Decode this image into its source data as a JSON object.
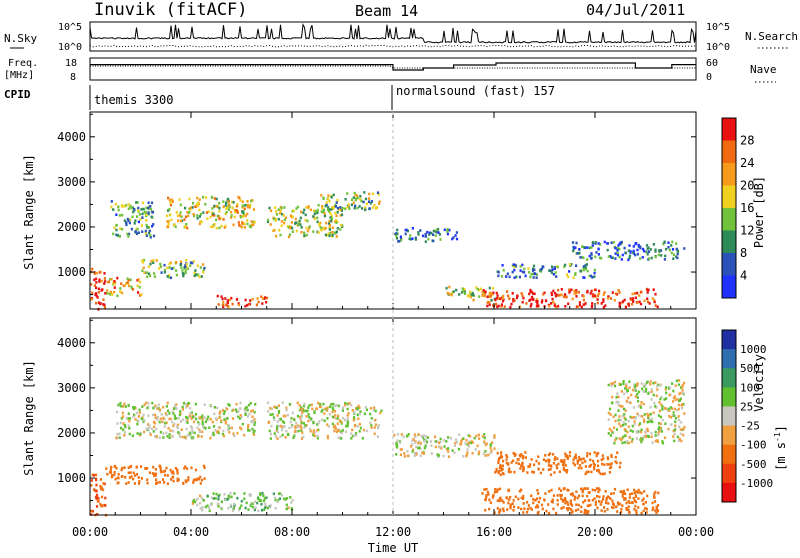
{
  "header": {
    "station": "Inuvik (fitACF)",
    "beam": "Beam 14",
    "date": "04/Jul/2011"
  },
  "top_panels": {
    "nsky_label": "N.Sky",
    "nsky_ticks": [
      "10^5",
      "10^0"
    ],
    "nsearch_label": "N.Search",
    "nsearch_ticks": [
      "10^5",
      "10^0"
    ],
    "freq_label": "Freq.",
    "freq_unit": "[MHz]",
    "freq_ticks": [
      "18",
      "8"
    ],
    "nave_label": "Nave",
    "nave_ticks": [
      "60",
      "0"
    ],
    "cpid_label": "CPID",
    "cpid_segments": [
      {
        "name": "themis 3300",
        "start_hour": 0
      },
      {
        "name": "normalsound (fast) 157",
        "start_hour": 12
      }
    ]
  },
  "x_axis": {
    "label": "Time UT",
    "ticks": [
      "00:00",
      "04:00",
      "08:00",
      "12:00",
      "16:00",
      "20:00",
      "00:00"
    ],
    "range_hours": [
      0,
      24
    ]
  },
  "y_axis": {
    "label": "Slant Range [km]",
    "ticks": [
      "1000",
      "2000",
      "3000",
      "4000"
    ],
    "range_km": [
      180,
      4550
    ]
  },
  "power_scale": {
    "label": "Power [dB]",
    "ticks": [
      "4",
      "8",
      "12",
      "16",
      "20",
      "24",
      "28"
    ],
    "colors": [
      "#1f32ff",
      "#2a52b8",
      "#2f8a5a",
      "#6fc23a",
      "#f0d020",
      "#f59a1a",
      "#f06a10",
      "#e81010"
    ]
  },
  "velocity_scale": {
    "label": "Velocity",
    "unit": "[m s",
    "unit_exp": "-1",
    "unit_close": "]",
    "ticks": [
      "1000",
      "500",
      "100",
      "25",
      "-25",
      "-100",
      "-500",
      "-1000"
    ],
    "colors": [
      "#2030a0",
      "#2f6fb0",
      "#3a9a60",
      "#60c030",
      "#c8c8c0",
      "#f0a040",
      "#f07010",
      "#f04010",
      "#e81010"
    ]
  },
  "chart_data": [
    {
      "type": "heatmap",
      "title": "Power",
      "xlabel": "Time UT",
      "ylabel": "Slant Range [km]",
      "xlim": [
        0,
        24
      ],
      "ylim": [
        180,
        4550
      ],
      "colorbar": {
        "label": "Power [dB]",
        "ticks": [
          4,
          8,
          12,
          16,
          20,
          24,
          28
        ]
      },
      "regions": [
        {
          "t": [
            0.0,
            0.6
          ],
          "r": [
            200,
            1100
          ],
          "value": 28
        },
        {
          "t": [
            0.6,
            2.0
          ],
          "r": [
            500,
            900
          ],
          "value": 20
        },
        {
          "t": [
            0.8,
            2.5
          ],
          "r": [
            1800,
            2600
          ],
          "value": 12
        },
        {
          "t": [
            2.0,
            4.5
          ],
          "r": [
            900,
            1300
          ],
          "value": 14
        },
        {
          "t": [
            3.0,
            6.5
          ],
          "r": [
            2000,
            2700
          ],
          "value": 18
        },
        {
          "t": [
            5.0,
            7.0
          ],
          "r": [
            250,
            500
          ],
          "value": 28
        },
        {
          "t": [
            7.0,
            10.0
          ],
          "r": [
            1800,
            2500
          ],
          "value": 16
        },
        {
          "t": [
            9.0,
            11.5
          ],
          "r": [
            2400,
            2800
          ],
          "value": 14
        },
        {
          "t": [
            12.0,
            14.5
          ],
          "r": [
            1700,
            2000
          ],
          "value": 8
        },
        {
          "t": [
            14.0,
            16.0
          ],
          "r": [
            400,
            700
          ],
          "value": 16
        },
        {
          "t": [
            15.5,
            22.5
          ],
          "r": [
            250,
            650
          ],
          "value": 28
        },
        {
          "t": [
            16.0,
            20.0
          ],
          "r": [
            900,
            1200
          ],
          "value": 10
        },
        {
          "t": [
            19.0,
            23.5
          ],
          "r": [
            1300,
            1700
          ],
          "value": 8
        }
      ]
    },
    {
      "type": "heatmap",
      "title": "Velocity",
      "xlabel": "Time UT",
      "ylabel": "Slant Range [km]",
      "xlim": [
        0,
        24
      ],
      "ylim": [
        180,
        4550
      ],
      "colorbar": {
        "label": "Velocity [m s-1]",
        "ticks": [
          1000,
          500,
          100,
          25,
          -25,
          -100,
          -500,
          -1000
        ]
      },
      "regions": [
        {
          "t": [
            0.0,
            0.6
          ],
          "r": [
            200,
            1100
          ],
          "value": -500
        },
        {
          "t": [
            0.6,
            4.5
          ],
          "r": [
            900,
            1300
          ],
          "value": -300
        },
        {
          "t": [
            1.0,
            6.5
          ],
          "r": [
            1900,
            2700
          ],
          "value": 0
        },
        {
          "t": [
            4.0,
            8.0
          ],
          "r": [
            300,
            700
          ],
          "value": 50
        },
        {
          "t": [
            7.0,
            11.5
          ],
          "r": [
            1900,
            2700
          ],
          "value": 0
        },
        {
          "t": [
            12.0,
            16.0
          ],
          "r": [
            1500,
            2000
          ],
          "value": 0
        },
        {
          "t": [
            15.5,
            22.5
          ],
          "r": [
            250,
            800
          ],
          "value": -400
        },
        {
          "t": [
            16.0,
            21.0
          ],
          "r": [
            1100,
            1600
          ],
          "value": -200
        },
        {
          "t": [
            20.5,
            23.5
          ],
          "r": [
            1800,
            3200
          ],
          "value": 0
        }
      ]
    }
  ]
}
